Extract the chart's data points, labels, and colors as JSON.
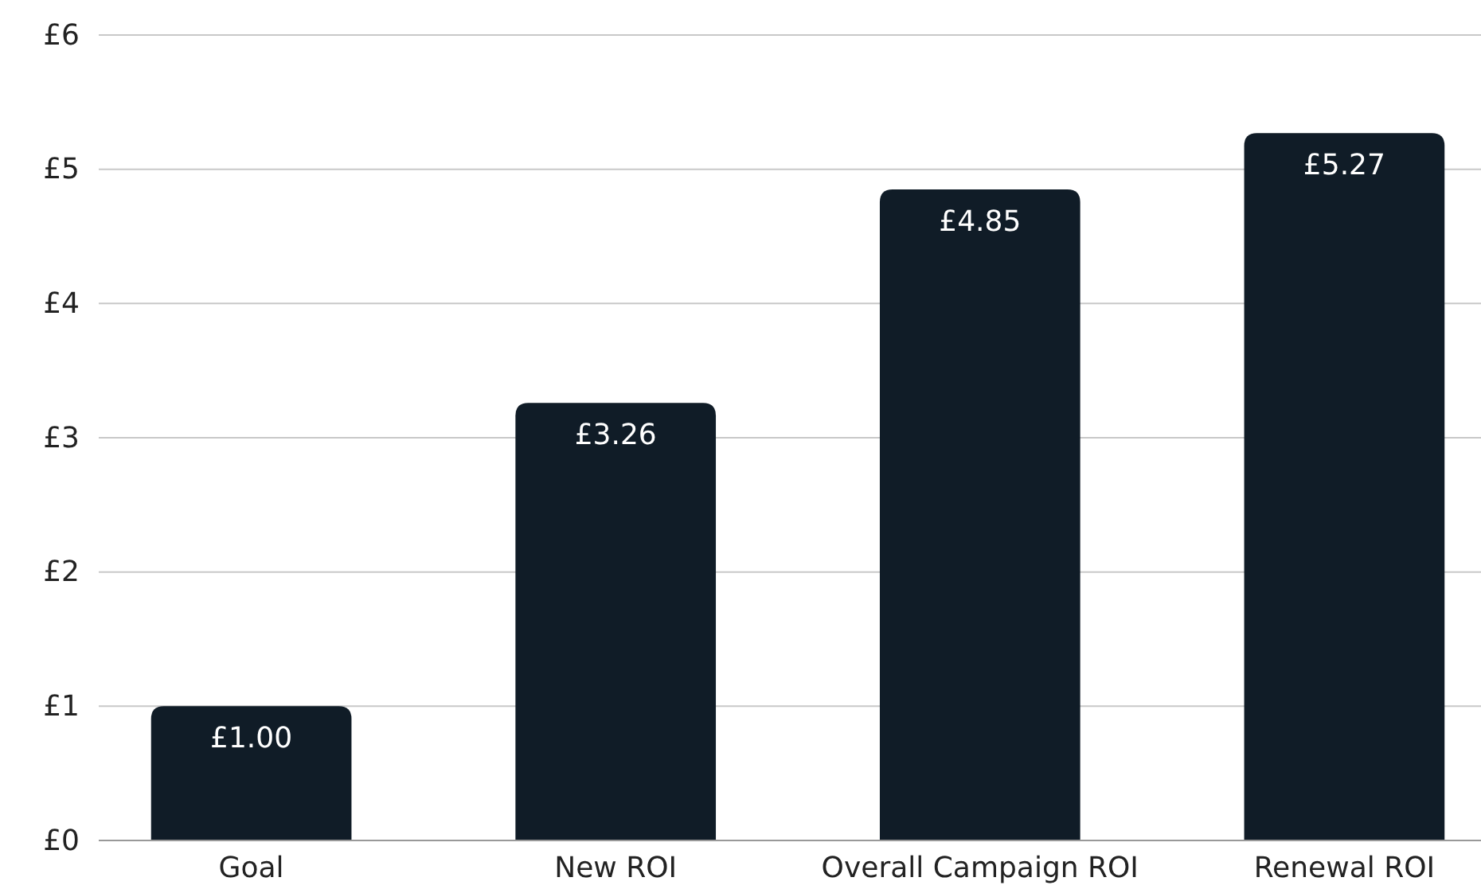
{
  "chart_data": {
    "type": "bar",
    "categories": [
      "Goal",
      "New ROI",
      "Overall Campaign ROI",
      "Renewal ROI"
    ],
    "values": [
      1.0,
      3.26,
      4.85,
      5.27
    ],
    "value_labels": [
      "£1.00",
      "£3.26",
      "£4.85",
      "£5.27"
    ],
    "color": "#101c27",
    "ylim": [
      0,
      6
    ],
    "yticks": [
      {
        "value": 0,
        "label": "£0"
      },
      {
        "value": 1,
        "label": "£1"
      },
      {
        "value": 2,
        "label": "£2"
      },
      {
        "value": 3,
        "label": "£3"
      },
      {
        "value": 4,
        "label": "£4"
      },
      {
        "value": 5,
        "label": "£5"
      },
      {
        "value": 6,
        "label": "£6"
      }
    ],
    "grid": "y"
  }
}
